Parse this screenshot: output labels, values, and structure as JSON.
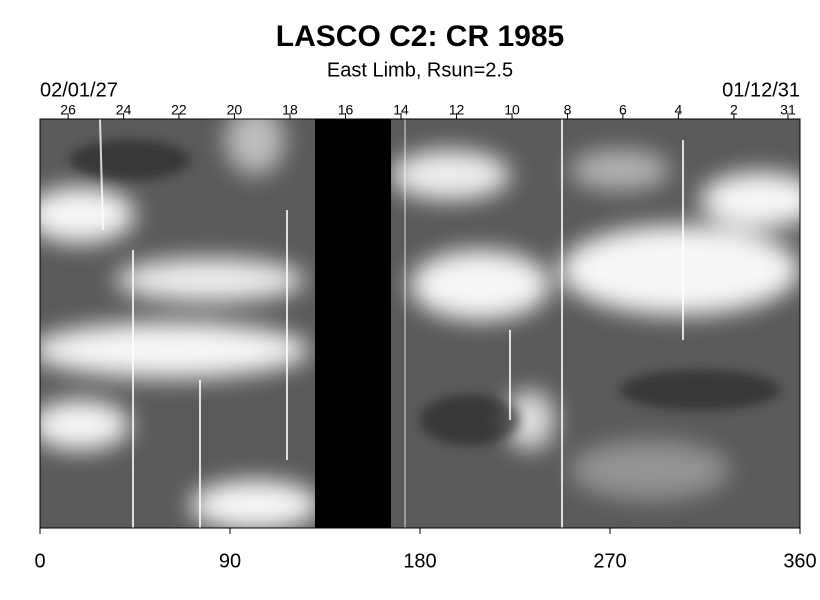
{
  "chart_data": {
    "type": "image",
    "title": "LASCO C2: CR 1985",
    "subtitle": "East Limb, Rsun=2.5",
    "start_label": "02/01/27",
    "end_label": "01/12/31",
    "xlim": [
      0,
      360
    ],
    "xticks": [
      0,
      90,
      180,
      270,
      360
    ],
    "x2ticks": [
      {
        "value": 13.3,
        "label": "26"
      },
      {
        "value": 39.6,
        "label": "24"
      },
      {
        "value": 65.8,
        "label": "22"
      },
      {
        "value": 92.1,
        "label": "20"
      },
      {
        "value": 118.4,
        "label": "18"
      },
      {
        "value": 144.7,
        "label": "16"
      },
      {
        "value": 171.0,
        "label": "14"
      },
      {
        "value": 197.3,
        "label": "12"
      },
      {
        "value": 223.6,
        "label": "10"
      },
      {
        "value": 249.9,
        "label": "8"
      },
      {
        "value": 276.1,
        "label": "6"
      },
      {
        "value": 302.4,
        "label": "4"
      },
      {
        "value": 328.7,
        "label": "2"
      },
      {
        "value": 354.3,
        "label": "31"
      }
    ]
  }
}
